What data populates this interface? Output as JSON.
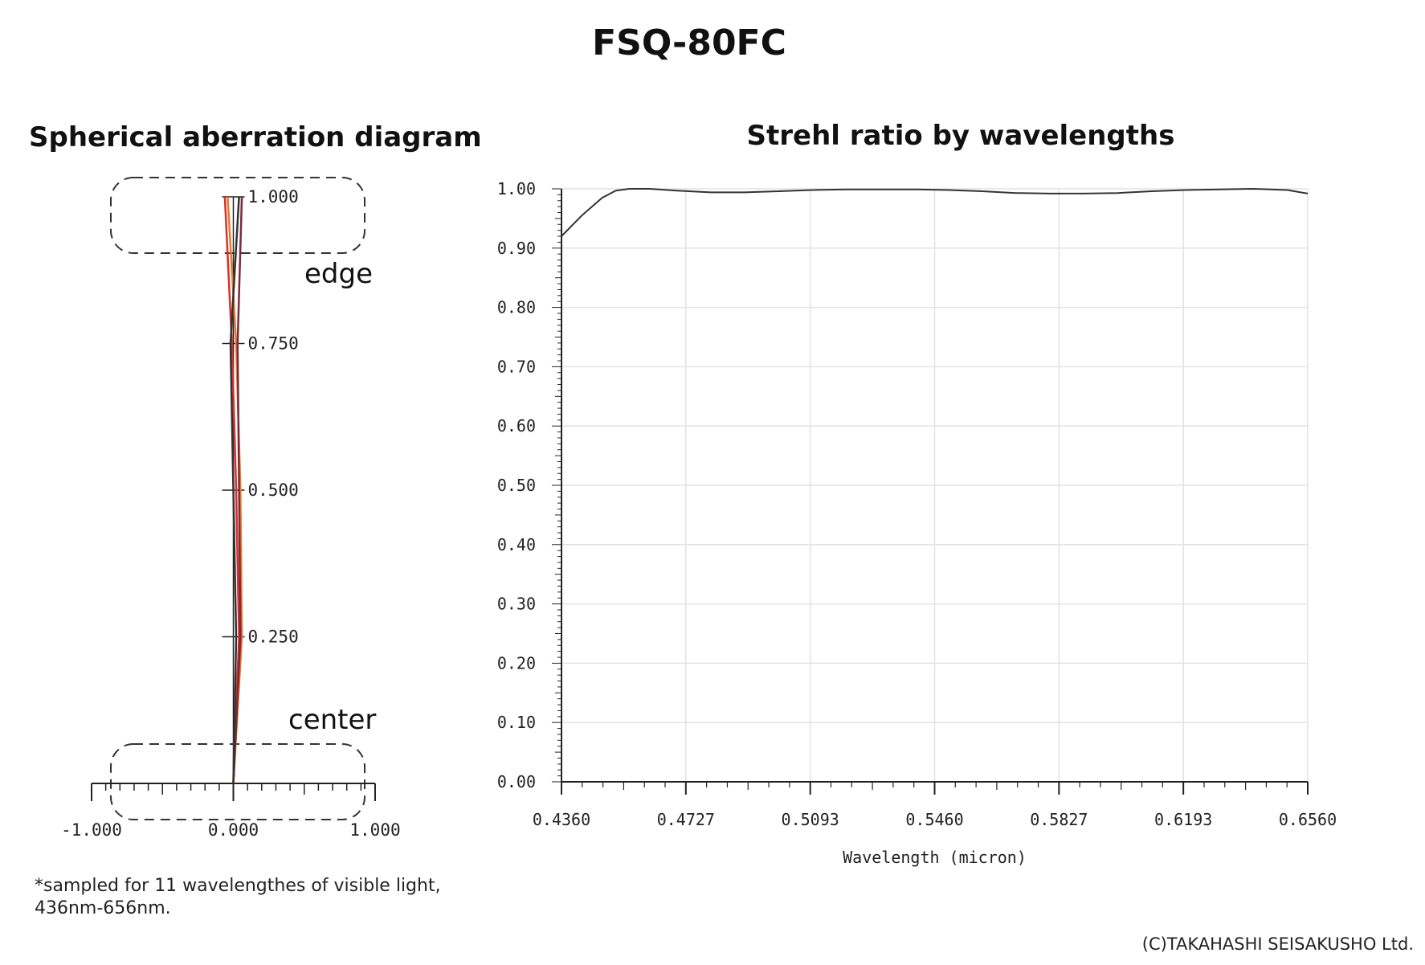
{
  "title": "FSQ-80FC",
  "footnote": [
    "*sampled for 11 wavelengthes of visible light,",
    "436nm-656nm."
  ],
  "copyright": "(C)TAKAHASHI SEISAKUSHO Ltd.",
  "chart_data": [
    {
      "type": "line",
      "title": "Spherical aberration diagram",
      "xlabel": "",
      "ylabel": "",
      "xlim": [
        -1.0,
        1.0
      ],
      "ylim": [
        0.0,
        1.0
      ],
      "x_ticks": [
        "-1.000",
        "0.000",
        "1.000"
      ],
      "y_ticks": [
        "0.250",
        "0.500",
        "0.750",
        "1.000"
      ],
      "annotations": [
        "edge",
        "center"
      ],
      "grid": false,
      "series": [
        {
          "color": "#e8782a",
          "y": [
            0,
            0.25,
            0.5,
            0.75,
            1.0
          ],
          "x": [
            0,
            0.006,
            0.005,
            0.002,
            -0.004
          ]
        },
        {
          "color": "#d9302a",
          "y": [
            0,
            0.25,
            0.5,
            0.75,
            1.0
          ],
          "x": [
            0,
            0.004,
            0.002,
            -0.001,
            -0.006
          ]
        },
        {
          "color": "#7a2a3a",
          "y": [
            0,
            0.25,
            0.5,
            0.75,
            1.0
          ],
          "x": [
            0,
            0.005,
            0.004,
            0.003,
            0.006
          ]
        },
        {
          "color": "#333333",
          "y": [
            0,
            0.25,
            0.5,
            0.75,
            1.0
          ],
          "x": [
            0,
            0.002,
            0.0,
            -0.002,
            0.004
          ]
        }
      ]
    },
    {
      "type": "line",
      "title": "Strehl ratio by wavelengths",
      "xlabel": "Wavelength (micron)",
      "ylabel": "",
      "xlim": [
        0.436,
        0.656
      ],
      "ylim": [
        0.0,
        1.0
      ],
      "x_ticks": [
        "0.4360",
        "0.4727",
        "0.5093",
        "0.5460",
        "0.5827",
        "0.6193",
        "0.6560"
      ],
      "y_ticks": [
        "0.00",
        "0.10",
        "0.20",
        "0.30",
        "0.40",
        "0.50",
        "0.60",
        "0.70",
        "0.80",
        "0.90",
        "1.00"
      ],
      "grid": true,
      "line_color": "#333333",
      "x": [
        0.436,
        0.442,
        0.448,
        0.452,
        0.456,
        0.462,
        0.47,
        0.48,
        0.49,
        0.5,
        0.51,
        0.52,
        0.53,
        0.54,
        0.55,
        0.56,
        0.57,
        0.58,
        0.59,
        0.6,
        0.61,
        0.62,
        0.63,
        0.64,
        0.65,
        0.656
      ],
      "y": [
        0.92,
        0.955,
        0.985,
        0.997,
        1.0,
        1.0,
        0.997,
        0.994,
        0.994,
        0.996,
        0.998,
        0.999,
        0.999,
        0.999,
        0.998,
        0.996,
        0.993,
        0.992,
        0.992,
        0.993,
        0.996,
        0.998,
        0.999,
        1.0,
        0.998,
        0.992
      ]
    }
  ]
}
